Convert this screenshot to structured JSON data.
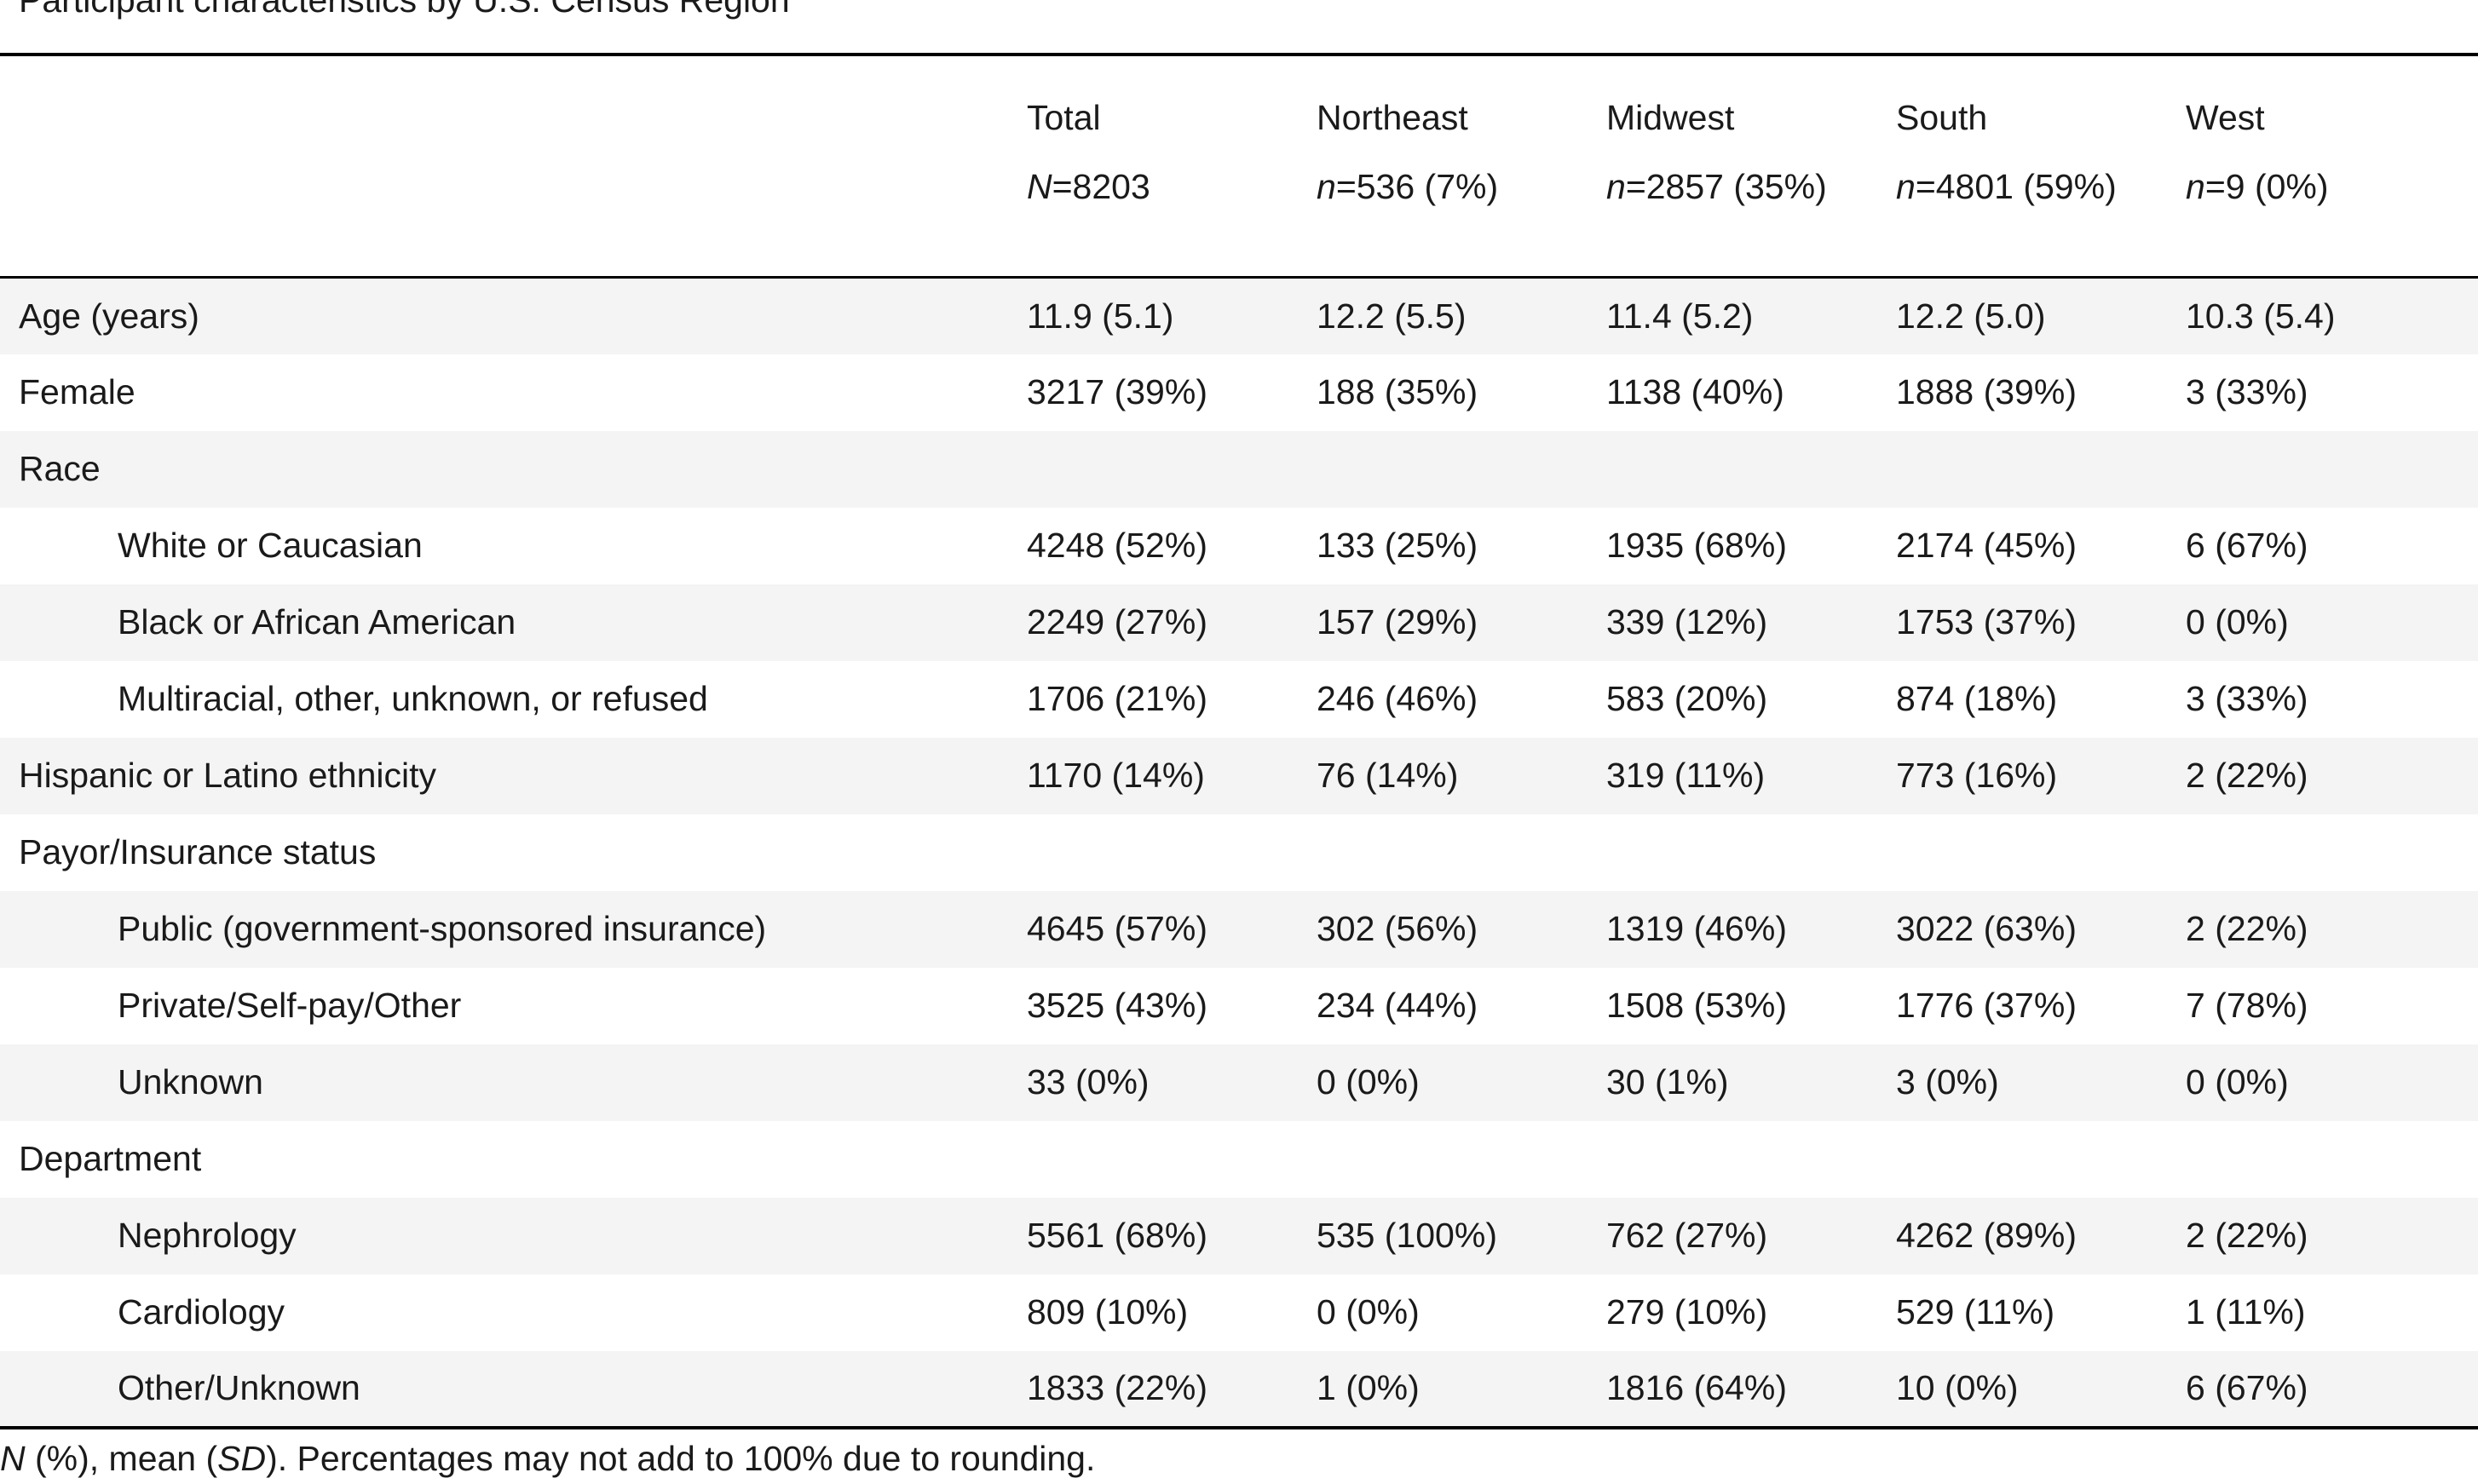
{
  "caption": "Participant characteristics by U.S. Census Region",
  "columns": [
    {
      "name": "Total",
      "count_prefix": "N",
      "count_value": "=8203"
    },
    {
      "name": "Northeast",
      "count_prefix": "n",
      "count_value": "=536 (7%)"
    },
    {
      "name": "Midwest",
      "count_prefix": "n",
      "count_value": "=2857 (35%)"
    },
    {
      "name": "South",
      "count_prefix": "n",
      "count_value": "=4801 (59%)"
    },
    {
      "name": "West",
      "count_prefix": "n",
      "count_value": "=9 (0%)"
    }
  ],
  "rows": [
    {
      "label": "Age (years)",
      "cells": [
        "11.9 (5.1)",
        "12.2 (5.5)",
        "11.4 (5.2)",
        "12.2 (5.0)",
        "10.3 (5.4)"
      ]
    },
    {
      "label": "Female",
      "cells": [
        "3217 (39%)",
        "188 (35%)",
        "1138 (40%)",
        "1888 (39%)",
        "3 (33%)"
      ]
    },
    {
      "label": "Race",
      "cells": [
        "",
        "",
        "",
        "",
        ""
      ]
    },
    {
      "label": "White or Caucasian",
      "cells": [
        "4248 (52%)",
        "133 (25%)",
        "1935 (68%)",
        "2174 (45%)",
        "6 (67%)"
      ]
    },
    {
      "label": "Black or African American",
      "cells": [
        "2249 (27%)",
        "157 (29%)",
        "339 (12%)",
        "1753 (37%)",
        "0 (0%)"
      ]
    },
    {
      "label": "Multiracial, other, unknown, or refused",
      "cells": [
        "1706 (21%)",
        "246 (46%)",
        "583 (20%)",
        "874 (18%)",
        "3 (33%)"
      ]
    },
    {
      "label": "Hispanic or Latino ethnicity",
      "cells": [
        "1170 (14%)",
        "76 (14%)",
        "319 (11%)",
        "773 (16%)",
        "2 (22%)"
      ]
    },
    {
      "label": "Payor/Insurance status",
      "cells": [
        "",
        "",
        "",
        "",
        ""
      ]
    },
    {
      "label": "Public (government-sponsored insurance)",
      "cells": [
        "4645 (57%)",
        "302 (56%)",
        "1319 (46%)",
        "3022 (63%)",
        "2 (22%)"
      ]
    },
    {
      "label": "Private/Self-pay/Other",
      "cells": [
        "3525 (43%)",
        "234 (44%)",
        "1508 (53%)",
        "1776 (37%)",
        "7 (78%)"
      ]
    },
    {
      "label": "Unknown",
      "cells": [
        "33 (0%)",
        "0 (0%)",
        "30 (1%)",
        "3 (0%)",
        "0 (0%)"
      ]
    },
    {
      "label": "Department",
      "cells": [
        "",
        "",
        "",
        "",
        ""
      ]
    },
    {
      "label": "Nephrology",
      "cells": [
        "5561 (68%)",
        "535 (100%)",
        "762 (27%)",
        "4262 (89%)",
        "2 (22%)"
      ]
    },
    {
      "label": "Cardiology",
      "cells": [
        "809 (10%)",
        "0 (0%)",
        "279 (10%)",
        "529 (11%)",
        "1 (11%)"
      ]
    },
    {
      "label": "Other/Unknown",
      "cells": [
        "1833 (22%)",
        "1 (0%)",
        "1816 (64%)",
        "10 (0%)",
        "6 (67%)"
      ]
    }
  ],
  "footnote": {
    "n_symbol": "N",
    "part1": " (%), mean (",
    "sd_symbol": "SD",
    "part2": "). Percentages may not add to 100% due to rounding."
  }
}
